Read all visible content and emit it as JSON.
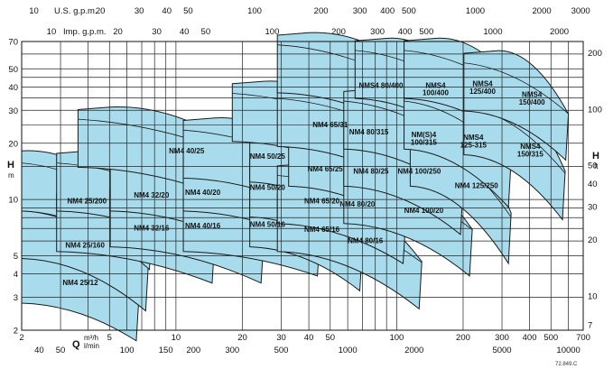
{
  "chart_data": {
    "type": "area",
    "xscale": "log",
    "yscale": "log",
    "xlim_m3h": [
      2,
      700
    ],
    "ylim_m": [
      2,
      70
    ],
    "grid": true,
    "axes": {
      "bottom_main": {
        "name": "Q",
        "unit": "m³/h",
        "ticks": [
          2,
          5,
          10,
          20,
          30,
          40,
          50,
          100,
          200,
          300,
          400,
          500,
          700
        ],
        "labels": [
          "2",
          "5",
          "10",
          "20",
          "30",
          "40",
          "50",
          "100",
          "200",
          "300",
          "400",
          "500",
          "700"
        ]
      },
      "bottom_sub": {
        "unit": "l/min",
        "ticks": [
          40,
          50,
          100,
          150,
          200,
          300,
          500,
          1000,
          2000,
          5000,
          10000
        ],
        "labels": [
          "40",
          "50",
          "100",
          "150",
          "200",
          "300",
          "500",
          "1000",
          "2000",
          "5000",
          "10000"
        ]
      },
      "top_us": {
        "unit": "U.S. g.p.m.",
        "ticks": [
          10,
          20,
          30,
          40,
          50,
          100,
          200,
          300,
          400,
          500,
          1000,
          2000,
          3000
        ],
        "labels": [
          "10",
          "20",
          "30",
          "40",
          "50",
          "100",
          "200",
          "300",
          "400",
          "500",
          "1000",
          "2000",
          "3000"
        ]
      },
      "top_imp": {
        "unit": "Imp. g.p.m.",
        "ticks": [
          10,
          20,
          30,
          40,
          50,
          100,
          200,
          300,
          400,
          500,
          1000,
          2000
        ],
        "labels": [
          "10",
          "20",
          "30",
          "40",
          "50",
          "100",
          "200",
          "300",
          "400",
          "500",
          "1000",
          "2000"
        ]
      },
      "left": {
        "name": "H",
        "unit": "m",
        "ticks": [
          2,
          3,
          4,
          5,
          10,
          20,
          30,
          40,
          50,
          70
        ],
        "labels": [
          "2",
          "3",
          "4",
          "5",
          "10",
          "20",
          "30",
          "40",
          "50",
          "70"
        ]
      },
      "right": {
        "name": "H",
        "unit": "ft",
        "ticks": [
          7,
          10,
          20,
          30,
          40,
          50,
          100,
          200
        ],
        "labels": [
          "7",
          "10",
          "20",
          "30",
          "40",
          "50",
          "100",
          "200"
        ]
      }
    },
    "series": [
      {
        "name": "NM4 25/12",
        "q": [
          2,
          6.8
        ],
        "h": [
          4.5,
          2.7
        ]
      },
      {
        "name": "NM4 25/160",
        "q": [
          2,
          7.5
        ],
        "h": [
          7.8,
          3.9
        ]
      },
      {
        "name": "NM4 25/200",
        "q": [
          2,
          7.8
        ],
        "h": [
          14,
          6.5
        ]
      },
      {
        "name": "NM4 32/16",
        "q": [
          4,
          15
        ],
        "h": [
          8.5,
          5.5
        ]
      },
      {
        "name": "NM4 32/20",
        "q": [
          4,
          15
        ],
        "h": [
          14,
          7.5
        ]
      },
      {
        "name": "NM4 40/16",
        "q": [
          7,
          25
        ],
        "h": [
          9,
          5.5
        ]
      },
      {
        "name": "NM4 40/20",
        "q": [
          7,
          25
        ],
        "h": [
          14,
          8
        ]
      },
      {
        "name": "NM4 40/25",
        "q": [
          5,
          25
        ],
        "h": [
          24,
          13
        ]
      },
      {
        "name": "NM4 50/16",
        "q": [
          15,
          45
        ],
        "h": [
          8.5,
          6
        ]
      },
      {
        "name": "NM4 50/20",
        "q": [
          15,
          45
        ],
        "h": [
          14,
          9
        ]
      },
      {
        "name": "NM4 50/25",
        "q": [
          15,
          45
        ],
        "h": [
          21,
          13
        ]
      },
      {
        "name": "NM4 65/16",
        "q": [
          30,
          70
        ],
        "h": [
          9,
          5
        ]
      },
      {
        "name": "NM4 65/20",
        "q": [
          30,
          70
        ],
        "h": [
          13,
          7
        ]
      },
      {
        "name": "NM4 65/25",
        "q": [
          30,
          75
        ],
        "h": [
          20,
          10
        ]
      },
      {
        "name": "NM4 65/31",
        "q": [
          25,
          100
        ],
        "h": [
          33,
          18
        ]
      },
      {
        "name": "NM4 80/16",
        "q": [
          40,
          130
        ],
        "h": [
          8.5,
          4
        ]
      },
      {
        "name": "NM4 80/20",
        "q": [
          40,
          110
        ],
        "h": [
          12,
          7
        ]
      },
      {
        "name": "NM4 80/25",
        "q": [
          45,
          130
        ],
        "h": [
          19,
          10
        ]
      },
      {
        "name": "NM4 80/315",
        "q": [
          40,
          140
        ],
        "h": [
          31,
          16
        ]
      },
      {
        "name": "NMS4 80/400",
        "q": [
          40,
          180
        ],
        "h": [
          60,
          26
        ]
      },
      {
        "name": "NM4 100/20",
        "q": [
          80,
          220
        ],
        "h": [
          12,
          6
        ]
      },
      {
        "name": "NM4 100/250",
        "q": [
          80,
          200
        ],
        "h": [
          19,
          10
        ]
      },
      {
        "name": "NM(S)4 100/315",
        "q": [
          80,
          220
        ],
        "h": [
          30,
          15
        ]
      },
      {
        "name": "NMS4 100/400",
        "q": [
          90,
          250
        ],
        "h": [
          56,
          27
        ]
      },
      {
        "name": "NM4 125/250",
        "q": [
          160,
          330
        ],
        "h": [
          19,
          7
        ]
      },
      {
        "name": "NMS4 125-315",
        "q": [
          150,
          330
        ],
        "h": [
          30,
          14
        ]
      },
      {
        "name": "NMS4 125/400",
        "q": [
          150,
          400
        ],
        "h": [
          56,
          28
        ]
      },
      {
        "name": "NMS4 150/315",
        "q": [
          280,
          580
        ],
        "h": [
          28,
          12
        ]
      },
      {
        "name": "NMS4 150/400",
        "q": [
          280,
          600
        ],
        "h": [
          48,
          25
        ]
      }
    ],
    "annotation": "72.849.C"
  }
}
